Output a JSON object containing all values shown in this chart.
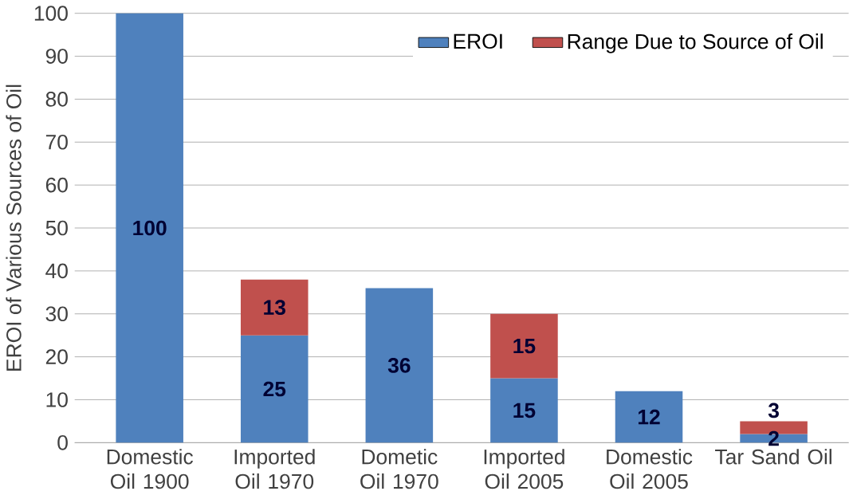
{
  "chart_data": {
    "type": "bar",
    "stacked": true,
    "ylabel": "EROI of Various Sources of Oil",
    "categories": [
      "Domestic Oil 1900",
      "Imported Oil 1970",
      "Dometic Oil 1970",
      "Imported Oil 2005",
      "Domestic Oil 2005",
      "Tar Sand Oil"
    ],
    "series": [
      {
        "name": "EROI",
        "color": "#4f81bd",
        "values": [
          100,
          25,
          36,
          15,
          12,
          2
        ]
      },
      {
        "name": "Range Due to Source of Oil",
        "color": "#c0504d",
        "values": [
          null,
          13,
          null,
          15,
          null,
          3
        ]
      }
    ],
    "ylim": [
      0,
      100
    ],
    "yticks": [
      0,
      10,
      20,
      30,
      40,
      50,
      60,
      70,
      80,
      90,
      100
    ],
    "grid": "y",
    "legend": "top right",
    "data_labels": true
  }
}
